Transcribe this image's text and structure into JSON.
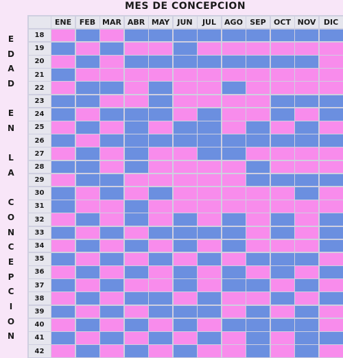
{
  "chart_data": {
    "type": "table",
    "title": "MES DE CONCEPCION",
    "ylabel_letters": [
      "E",
      "D",
      "A",
      "D",
      "",
      "E",
      "N",
      "",
      "L",
      "A",
      "",
      "C",
      "O",
      "N",
      "C",
      "E",
      "P",
      "C",
      "I",
      "O",
      "N"
    ],
    "months": [
      "ENE",
      "FEB",
      "MAR",
      "ABR",
      "MAY",
      "JUN",
      "JUL",
      "AGO",
      "SEP",
      "OCT",
      "NOV",
      "DIC"
    ],
    "ages": [
      "18",
      "19",
      "20",
      "21",
      "22",
      "23",
      "24",
      "25",
      "26",
      "27",
      "28",
      "29",
      "30",
      "31",
      "32",
      "33",
      "34",
      "35",
      "36",
      "37",
      "38",
      "39",
      "40",
      "41",
      "42"
    ],
    "legend_codes": {
      "M": "blue",
      "F": "pink"
    },
    "cells": [
      "FMFMMMMMMMMM",
      "MFMFFMFFFFFF",
      "FMFMMMMMMMMF",
      "MFFFFFFFFFFF",
      "FMMFMFFMFFFF",
      "MMFFMFFFFMMM",
      "MFMMMFMFFMFM",
      "FMFMFMMFMFMF",
      "MFMMMMMMMMMM",
      "FMFMFFMMFFFF",
      "MMFMFFFFMFFF",
      "FMMFFFFFMMMM",
      "MFMFMFFFFFMF",
      "MFFMFFFFFFFF",
      "FMFMFMFMFMFM",
      "MFMFMMMMFMFM",
      "FMFMFMFMFFFM",
      "MFMFMFMFMMMF",
      "FMFMFMFMFMFM",
      "MFMFFMFMMFMF",
      "FMFMMFMFFMFM",
      "MFMFMMMFMFMF",
      "FMFMFMFMMMMF",
      "MFMFMFMFMFMM",
      "FMFMFMFFMFMF"
    ]
  },
  "colors": {
    "blue": "#6b8fe0",
    "pink": "#f88cec",
    "header_bg": "#e6e6ee",
    "background": "#f8e6f8"
  }
}
